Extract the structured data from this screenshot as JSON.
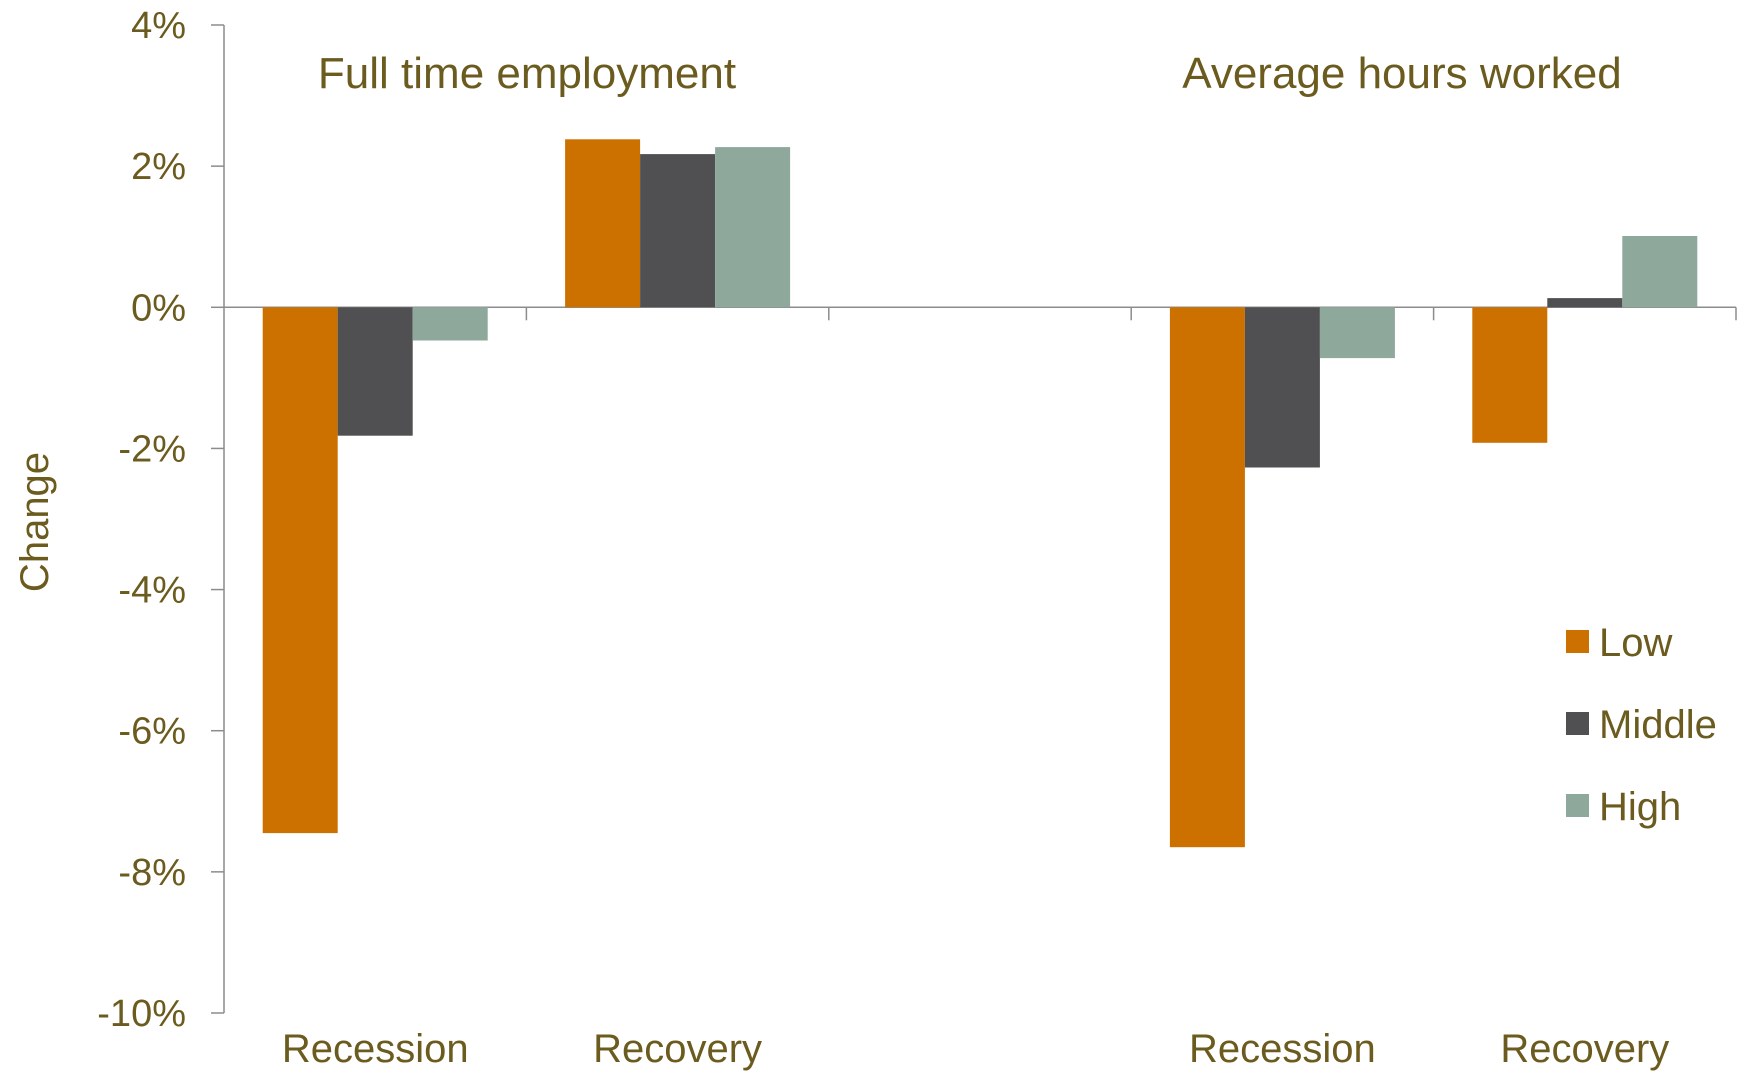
{
  "chart_data": {
    "type": "bar",
    "ylabel": "Change",
    "ylim": [
      -10,
      4
    ],
    "y_ticks": [
      4,
      2,
      0,
      -2,
      -4,
      -6,
      -8,
      -10
    ],
    "y_tick_labels": [
      "4%",
      "2%",
      "0%",
      "-2%",
      "-4%",
      "-6%",
      "-8%",
      "-10%"
    ],
    "annotations": [
      "Full time employment",
      "Average hours worked"
    ],
    "categories": [
      "Recession",
      "Recovery",
      "",
      "Recession",
      "Recovery"
    ],
    "series": [
      {
        "name": "Low",
        "color": "#CC7000",
        "values": [
          -7.45,
          2.38,
          null,
          -7.65,
          -1.92
        ]
      },
      {
        "name": "Middle",
        "color": "#505052",
        "values": [
          -1.82,
          2.17,
          null,
          -2.27,
          0.13
        ]
      },
      {
        "name": "High",
        "color": "#8FA89C",
        "values": [
          -0.47,
          2.27,
          null,
          -0.72,
          1.01
        ]
      }
    ],
    "legend_position": "right",
    "grid": false,
    "text_color": "#6B5B1E",
    "axis_color": "#8C8C8C"
  }
}
